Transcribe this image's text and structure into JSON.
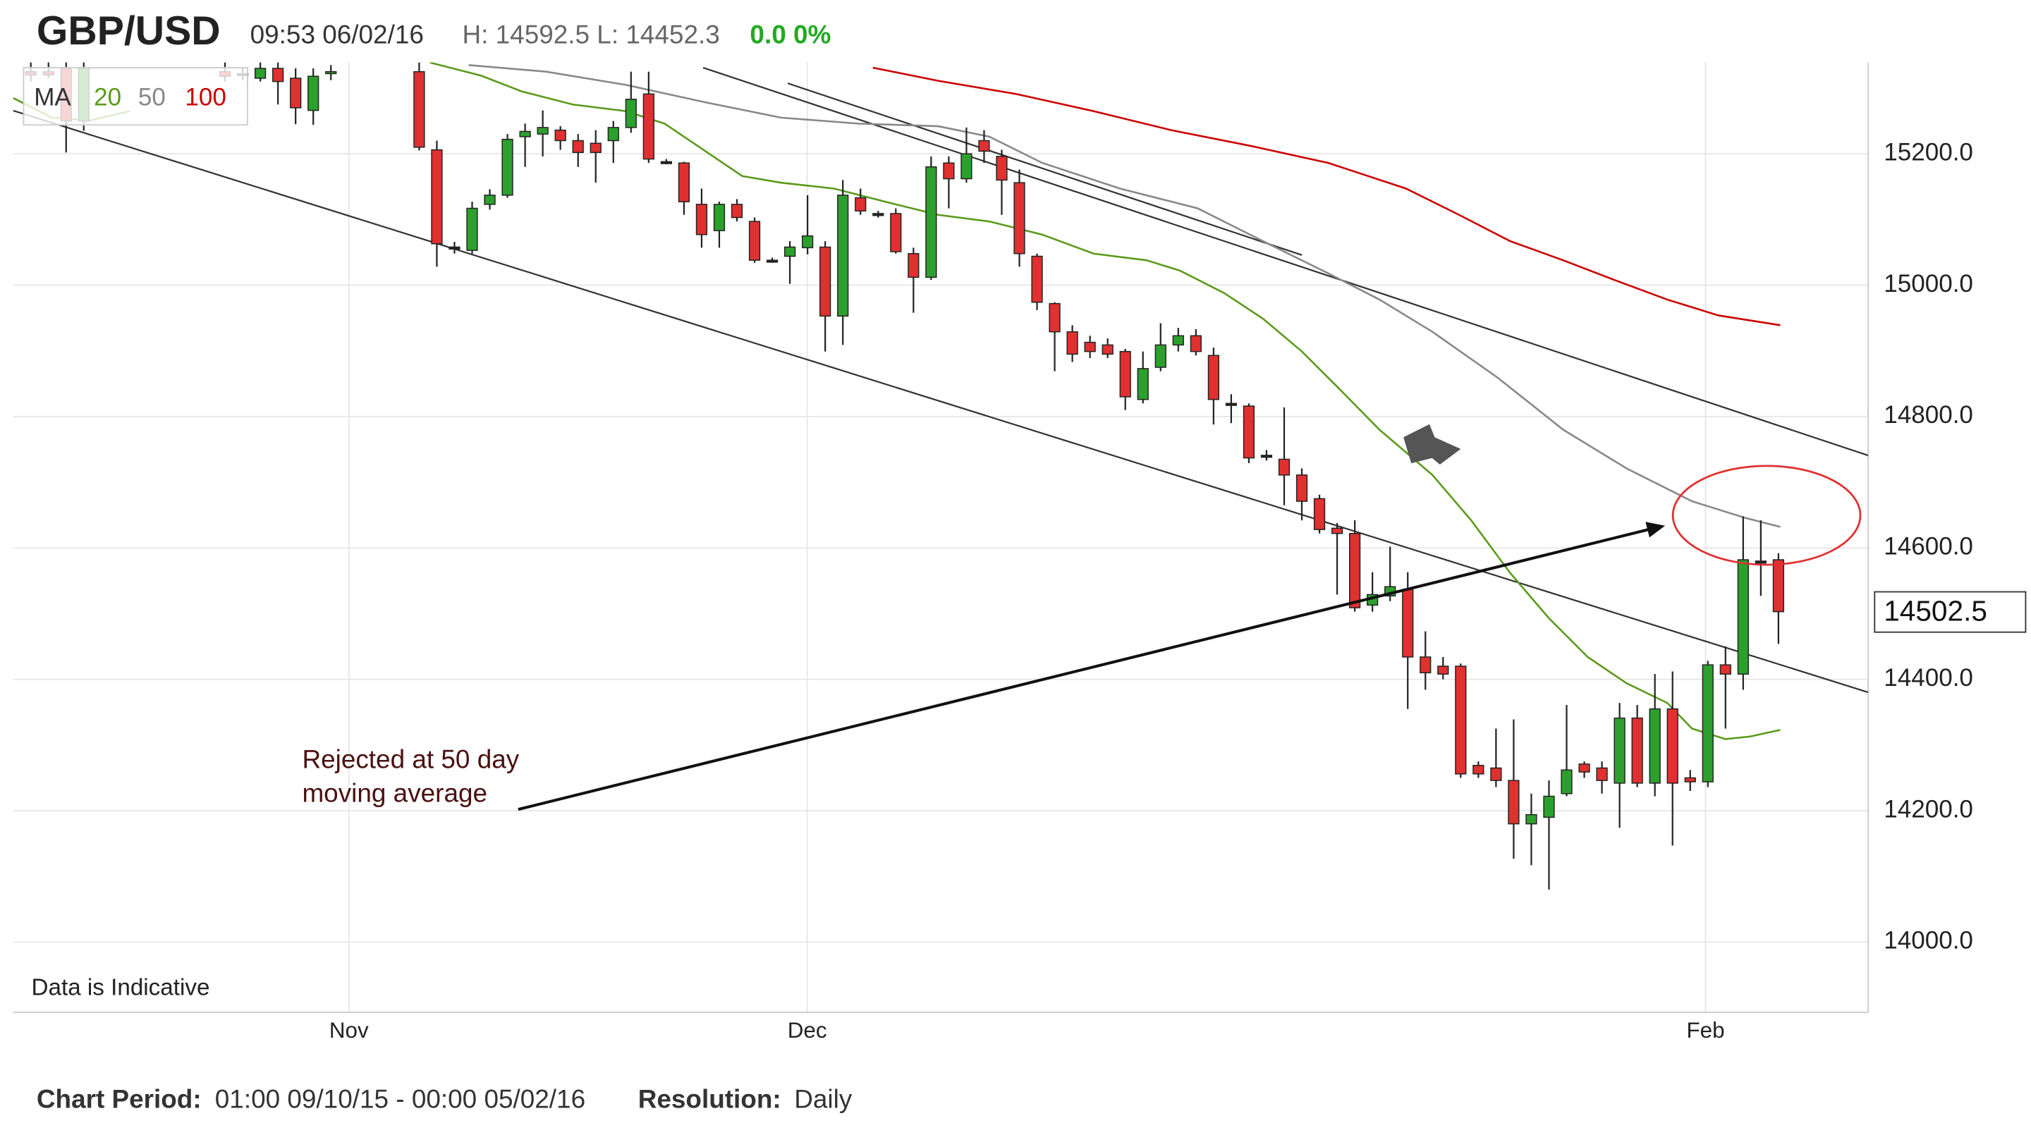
{
  "header": {
    "symbol": "GBP/USD",
    "time": "09:53 06/02/16",
    "high_low": "H: 14592.5 L: 14452.3",
    "change": "0.0 0%"
  },
  "footer": {
    "period_label": "Chart Period:",
    "period": "01:00 09/10/15 - 00:00 05/02/16",
    "resolution_label": "Resolution:",
    "resolution": "Daily"
  },
  "chart_data": {
    "type": "candlestick",
    "note": "Data is Indicative",
    "annotation": [
      "Rejected at 50 day",
      "moving average"
    ],
    "legend_title": "MA",
    "up_color": "#2ca02c",
    "down_color": "#e03030",
    "xlim": [
      -1.0,
      104.08
    ],
    "xticks": [
      {
        "value": 18.02,
        "label": "Nov"
      },
      {
        "value": 43.98,
        "label": "Dec"
      },
      {
        "value": 94.87,
        "label": "Feb"
      }
    ],
    "ylim": [
      13893,
      15339
    ],
    "yticks": [
      {
        "value": 14000,
        "label": "14000.0"
      },
      {
        "value": 14200,
        "label": "14200.0"
      },
      {
        "value": 14400,
        "label": "14400.0"
      },
      {
        "value": 14600,
        "label": "14600.0"
      },
      {
        "value": 14800,
        "label": "14800.0"
      },
      {
        "value": 15000,
        "label": "15000.0"
      },
      {
        "value": 15200,
        "label": "15200.0"
      }
    ],
    "grid": true,
    "last_price": {
      "value": 14502.5,
      "label": "14502.5"
    },
    "x": [
      0,
      1,
      2,
      3,
      11,
      12,
      13,
      14,
      15,
      16,
      17,
      22,
      23,
      24,
      25,
      26,
      27,
      28,
      29,
      30,
      31,
      32,
      33,
      34,
      35,
      36,
      37,
      38,
      39,
      40,
      41,
      42,
      43,
      44,
      45,
      46,
      47,
      48,
      49,
      50,
      51,
      52,
      53,
      54,
      55,
      56,
      57,
      58,
      59,
      60,
      61,
      62,
      63,
      64,
      65,
      66,
      67,
      68,
      69,
      70,
      71,
      72,
      73,
      74,
      75,
      76,
      77,
      78,
      79,
      80,
      81,
      82,
      83,
      84,
      85,
      86,
      87,
      88,
      89,
      90,
      91,
      92,
      93,
      94,
      95,
      96,
      97,
      98,
      99
    ],
    "open": [
      15325,
      15325,
      15330,
      15250,
      15325,
      15322,
      15315,
      15330,
      15315,
      15266,
      15322,
      15325,
      15206,
      15058,
      15053,
      15123,
      15137,
      15226,
      15230,
      15236,
      15220,
      15216,
      15220,
      15240,
      15291,
      15188,
      15186,
      15123,
      15083,
      15123,
      15097,
      15038,
      15044,
      15057,
      15058,
      14953,
      15133,
      15109,
      15109,
      15048,
      15012,
      15186,
      15162,
      15220,
      15196,
      15156,
      15044,
      14972,
      14929,
      14913,
      14909,
      14899,
      14826,
      14875,
      14909,
      14923,
      14893,
      14820,
      14816,
      14741,
      14735,
      14711,
      14675,
      14630,
      14622,
      14513,
      14527,
      14537,
      14434,
      14420,
      14420,
      14269,
      14265,
      14246,
      14180,
      14190,
      14226,
      14271,
      14265,
      14242,
      14341,
      14242,
      14355,
      14250,
      14244,
      14422,
      14408,
      14580,
      14582
    ],
    "high": [
      15345,
      15345,
      15345,
      15345,
      15345,
      15330,
      15345,
      15345,
      15330,
      15330,
      15335,
      15345,
      15220,
      15066,
      15127,
      15146,
      15230,
      15246,
      15266,
      15242,
      15230,
      15236,
      15250,
      15325,
      15325,
      15192,
      15188,
      15147,
      15127,
      15131,
      15103,
      15042,
      15067,
      15137,
      15067,
      15160,
      15147,
      15113,
      15117,
      15057,
      15196,
      15196,
      15240,
      15236,
      15206,
      15176,
      15048,
      14974,
      14939,
      14923,
      14919,
      14903,
      14899,
      14942,
      14935,
      14933,
      14905,
      14834,
      14820,
      14749,
      14814,
      14721,
      14681,
      14638,
      14642,
      14563,
      14602,
      14563,
      14473,
      14434,
      14424,
      14275,
      14325,
      14339,
      14226,
      14246,
      14361,
      14275,
      14275,
      14364,
      14361,
      14408,
      14412,
      14262,
      14428,
      14450,
      14648,
      14642,
      14592
    ],
    "low": [
      15310,
      15315,
      15202,
      15235,
      15310,
      15312,
      15310,
      15275,
      15245,
      15244,
      15312,
      15205,
      15028,
      15048,
      15048,
      15115,
      15133,
      15180,
      15196,
      15206,
      15180,
      15156,
      15186,
      15232,
      15186,
      15184,
      15107,
      15057,
      15057,
      15097,
      15034,
      15034,
      15002,
      15047,
      14899,
      14909,
      15107,
      15103,
      15048,
      14958,
      15008,
      15117,
      15156,
      15186,
      15107,
      15028,
      14962,
      14869,
      14883,
      14889,
      14889,
      14810,
      14820,
      14869,
      14899,
      14893,
      14788,
      14790,
      14729,
      14733,
      14665,
      14642,
      14622,
      14529,
      14503,
      14503,
      14519,
      14355,
      14384,
      14400,
      14250,
      14250,
      14236,
      14127,
      14117,
      14080,
      14222,
      14250,
      14226,
      14174,
      14236,
      14222,
      14147,
      14230,
      14236,
      14325,
      14384,
      14527,
      14454
    ],
    "close": [
      15320,
      15320,
      15250,
      15330,
      15318,
      15322,
      15330,
      15310,
      15270,
      15318,
      15325,
      15210,
      15063,
      15058,
      15117,
      15137,
      15222,
      15234,
      15240,
      15220,
      15202,
      15202,
      15240,
      15283,
      15192,
      15188,
      15127,
      15077,
      15123,
      15103,
      15038,
      15038,
      15058,
      15075,
      14953,
      15137,
      15113,
      15109,
      15051,
      15012,
      15180,
      15162,
      15200,
      15204,
      15160,
      15048,
      14974,
      14929,
      14895,
      14899,
      14895,
      14830,
      14873,
      14909,
      14923,
      14899,
      14826,
      14820,
      14737,
      14741,
      14711,
      14671,
      14628,
      14622,
      14509,
      14529,
      14541,
      14434,
      14410,
      14408,
      14256,
      14256,
      14246,
      14180,
      14194,
      14222,
      14262,
      14259,
      14246,
      14341,
      14242,
      14355,
      14242,
      14244,
      14422,
      14408,
      14582,
      14580,
      14503
    ],
    "series": [
      {
        "name": "20",
        "color": "#5a9a1a",
        "x": [
          -1.0,
          1.2,
          3.4,
          5.6,
          6.5,
          22.6,
          25.5,
          27.8,
          30.7,
          33.7,
          35.9,
          38.1,
          40.3,
          42.5,
          45.5,
          48.4,
          51.4,
          54.3,
          57.3,
          60.2,
          63.2,
          65.1,
          67.6,
          69.8,
          72.0,
          74.2,
          76.4,
          79.4,
          81.6,
          83.8,
          86.0,
          88.2,
          90.4,
          92.7,
          94.1,
          96.0,
          97.4,
          99.1
        ],
        "values": [
          15285,
          15255,
          15251,
          15265,
          null,
          15339,
          15319,
          15295,
          15275,
          15265,
          15246,
          15206,
          15166,
          15156,
          15147,
          15127,
          15107,
          15097,
          15077,
          15048,
          15038,
          15022,
          14988,
          14949,
          14899,
          14840,
          14780,
          14711,
          14642,
          14562,
          14493,
          14434,
          14394,
          14364,
          14325,
          14309,
          14313,
          14323
        ]
      },
      {
        "name": "50",
        "color": "#888888",
        "x": [
          24.8,
          29.2,
          33.7,
          38.1,
          42.5,
          46.9,
          51.4,
          54.3,
          57.3,
          61.7,
          66.1,
          69.8,
          73.5,
          76.4,
          79.4,
          83.1,
          86.8,
          90.4,
          94.1,
          97.1,
          99.1
        ],
        "values": [
          15335,
          15325,
          15305,
          15279,
          15255,
          15246,
          15242,
          15226,
          15186,
          15147,
          15117,
          15067,
          15018,
          14978,
          14929,
          14859,
          14780,
          14721,
          14671,
          14646,
          14632
        ]
      },
      {
        "name": "100",
        "color": "#cc0000",
        "x": [
          47.7,
          51.4,
          55.8,
          60.2,
          64.6,
          69.1,
          73.5,
          77.9,
          80.9,
          83.8,
          86.8,
          89.7,
          92.7,
          95.6,
          99.1
        ],
        "values": [
          15331,
          15311,
          15291,
          15265,
          15236,
          15212,
          15186,
          15147,
          15107,
          15067,
          15038,
          15008,
          14978,
          14954,
          14939
        ]
      }
    ]
  }
}
